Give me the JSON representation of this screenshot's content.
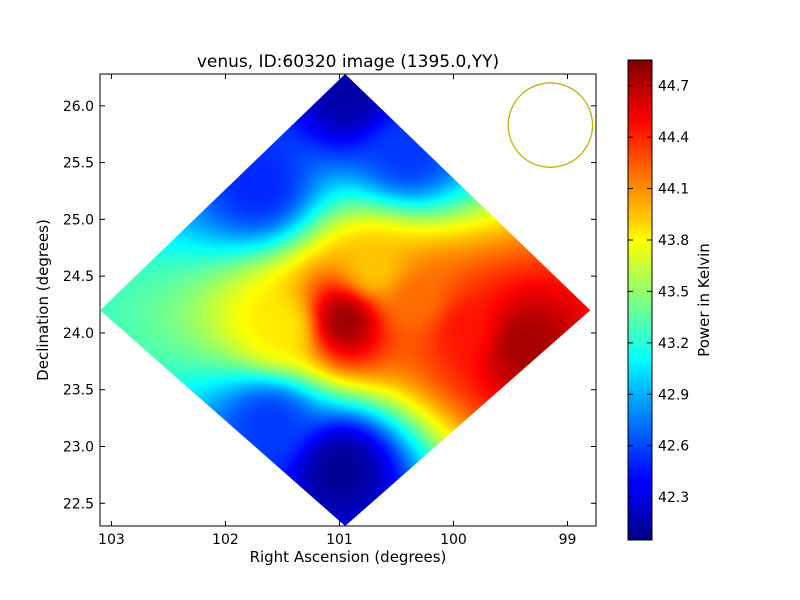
{
  "chart_data": {
    "type": "heatmap",
    "title": "venus, ID:60320 image (1395.0,YY)",
    "xlabel": "Right Ascension (degrees)",
    "ylabel": "Declination (degrees)",
    "xlim": [
      103.1,
      98.75
    ],
    "ylim": [
      22.3,
      26.28
    ],
    "x_ticks": [
      103,
      102,
      101,
      100,
      99
    ],
    "y_ticks": [
      22.5,
      23.0,
      23.5,
      24.0,
      24.5,
      25.0,
      25.5,
      26.0
    ],
    "x_tick_labels": [
      "103",
      "102",
      "101",
      "100",
      "99"
    ],
    "y_tick_labels": [
      "22.5",
      "23.0",
      "23.5",
      "24.0",
      "24.5",
      "25.0",
      "25.5",
      "26.0"
    ],
    "colorbar": {
      "label": "Power in Kelvin",
      "range": [
        42.05,
        44.85
      ],
      "ticks": [
        42.3,
        42.6,
        42.9,
        43.2,
        43.5,
        43.8,
        44.1,
        44.4,
        44.7
      ],
      "tick_labels": [
        "42.3",
        "42.6",
        "42.9",
        "43.2",
        "43.5",
        "43.8",
        "44.1",
        "44.4",
        "44.7"
      ],
      "colormap": "jet"
    },
    "map_footprint": {
      "shape": "diamond",
      "vertices_ra_dec": [
        [
          100.95,
          26.28
        ],
        [
          98.8,
          24.2
        ],
        [
          100.95,
          22.3
        ],
        [
          103.1,
          24.2
        ]
      ]
    },
    "beam_circle": {
      "ra": 99.15,
      "dec": 25.83,
      "radius_deg": 0.37,
      "color": "#c0b000"
    },
    "features": [
      {
        "kind": "peak",
        "ra": 100.95,
        "dec": 24.12,
        "value": 44.8
      },
      {
        "kind": "ridge",
        "ra": 99.4,
        "dec": 23.9,
        "value": 44.75
      },
      {
        "kind": "ridge",
        "ra": 99.9,
        "dec": 24.05,
        "value": 44.45
      },
      {
        "kind": "plateau",
        "ra": 100.3,
        "dec": 24.3,
        "value": 44.2
      },
      {
        "kind": "arm",
        "ra": 100.7,
        "dec": 24.55,
        "value": 43.95
      },
      {
        "kind": "edge",
        "ra": 101.5,
        "dec": 24.05,
        "value": 43.85
      },
      {
        "kind": "trough",
        "ra": 101.0,
        "dec": 22.8,
        "value": 42.1
      },
      {
        "kind": "trough",
        "ra": 100.9,
        "dec": 26.1,
        "value": 42.15
      },
      {
        "kind": "trough",
        "ra": 101.7,
        "dec": 25.3,
        "value": 42.5
      },
      {
        "kind": "trough",
        "ra": 100.4,
        "dec": 25.6,
        "value": 42.55
      },
      {
        "kind": "trough",
        "ra": 101.6,
        "dec": 23.2,
        "value": 42.55
      }
    ]
  }
}
